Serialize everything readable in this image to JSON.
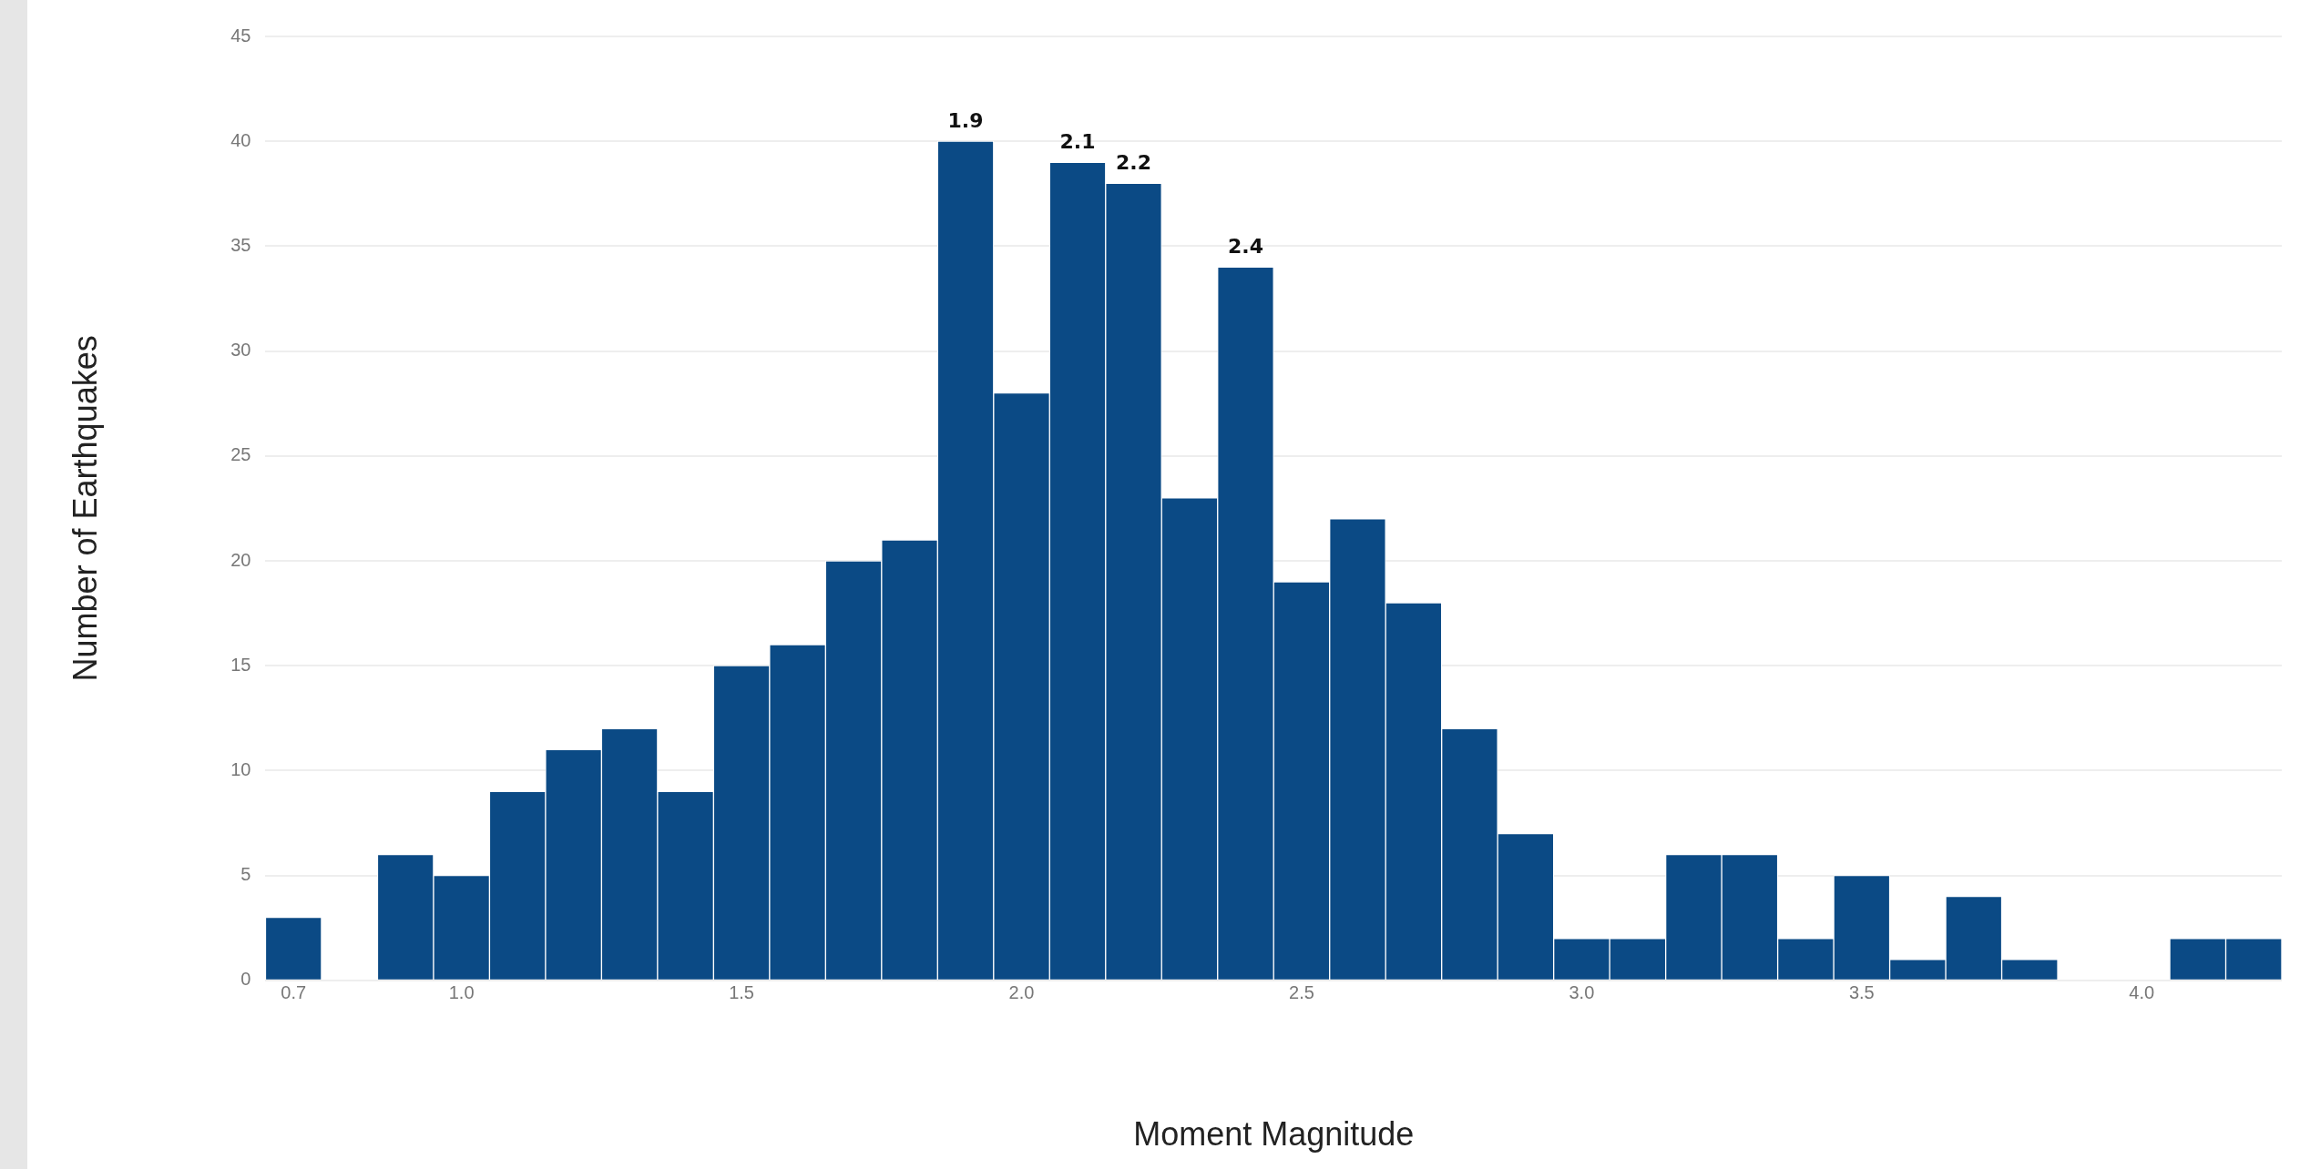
{
  "chart_data": {
    "type": "histogram",
    "xlabel": "Moment Magnitude",
    "ylabel": "Number of Earthquakes",
    "bins": [
      0.65,
      0.75,
      0.85,
      0.95,
      1.05,
      1.15,
      1.25,
      1.35,
      1.45,
      1.55,
      1.65,
      1.75,
      1.85,
      1.95,
      2.05,
      2.15,
      2.25,
      2.35,
      2.45,
      2.55,
      2.65,
      2.75,
      2.85,
      2.95,
      3.05,
      3.15,
      3.25,
      3.35,
      3.45,
      3.55,
      3.65,
      3.75,
      3.85,
      3.95,
      4.05,
      4.15,
      4.25
    ],
    "values": [
      3,
      0,
      6,
      5,
      9,
      11,
      12,
      9,
      15,
      16,
      20,
      21,
      40,
      28,
      39,
      38,
      23,
      34,
      19,
      22,
      18,
      12,
      7,
      2,
      2,
      6,
      6,
      2,
      5,
      1,
      4,
      1,
      0,
      0,
      2,
      2
    ],
    "color": "#0b4a85",
    "xlim": [
      0.65,
      4.25
    ],
    "xticks": [
      0.7,
      {
        "value": 1,
        "label": "1.0"
      },
      1.5,
      {
        "value": 2,
        "label": "2.0"
      },
      2.5,
      {
        "value": 3,
        "label": "3.0"
      },
      3.5,
      {
        "value": 4,
        "label": "4.0"
      }
    ],
    "ylim": [
      0,
      45
    ],
    "yticks": [
      0,
      5,
      10,
      15,
      20,
      25,
      30,
      35,
      40,
      45
    ],
    "grid": "y",
    "annotations": [
      {
        "text": "1.9",
        "x": 1.9,
        "y": 40
      },
      {
        "text": "2.1",
        "x": 2.1,
        "y": 39
      },
      {
        "text": "2.2",
        "x": 2.2,
        "y": 38
      },
      {
        "text": "2.4",
        "x": 2.4,
        "y": 34
      }
    ]
  }
}
